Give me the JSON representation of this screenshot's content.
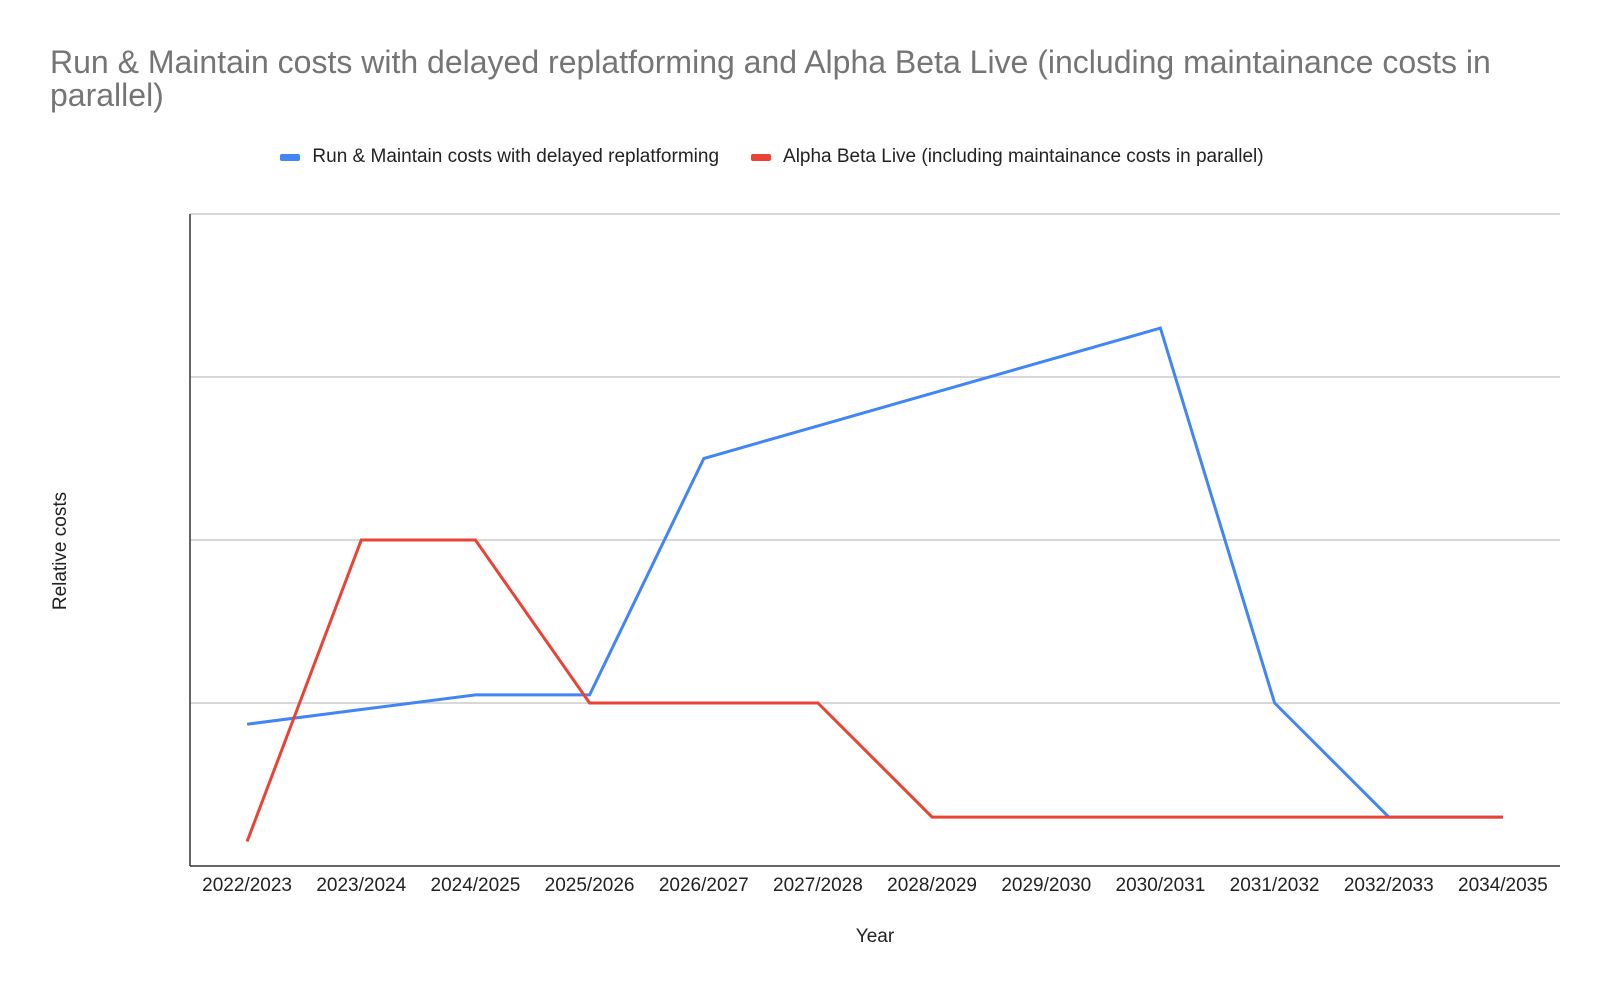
{
  "chart_data": {
    "type": "line",
    "title": "Run & Maintain costs with delayed replatforming  and Alpha Beta Live (including maintainance costs in parallel)",
    "xlabel": "Year",
    "ylabel": "Relative costs",
    "categories": [
      "2022/2023",
      "2023/2024",
      "2024/2025",
      "2025/2026",
      "2026/2027",
      "2027/2028",
      "2028/2029",
      "2029/2030",
      "2030/2031",
      "2031/2032",
      "2032/2033",
      "2034/2035"
    ],
    "ylim": [
      0,
      4
    ],
    "y_gridlines": [
      1,
      2,
      3,
      4
    ],
    "y_tick_labels_shown": false,
    "grid": true,
    "legend_position": "top",
    "series": [
      {
        "name": "Run & Maintain costs with delayed replatforming",
        "color": "#4285f4",
        "values": [
          0.87,
          0.96,
          1.05,
          1.05,
          2.5,
          2.7,
          2.9,
          3.1,
          3.3,
          1.0,
          0.3,
          0.3
        ]
      },
      {
        "name": "Alpha Beta Live (including maintainance costs in parallel)",
        "color": "#ea4335",
        "values": [
          0.15,
          2.0,
          2.0,
          1.0,
          1.0,
          1.0,
          0.3,
          0.3,
          0.3,
          0.3,
          0.3,
          0.3
        ]
      }
    ]
  }
}
